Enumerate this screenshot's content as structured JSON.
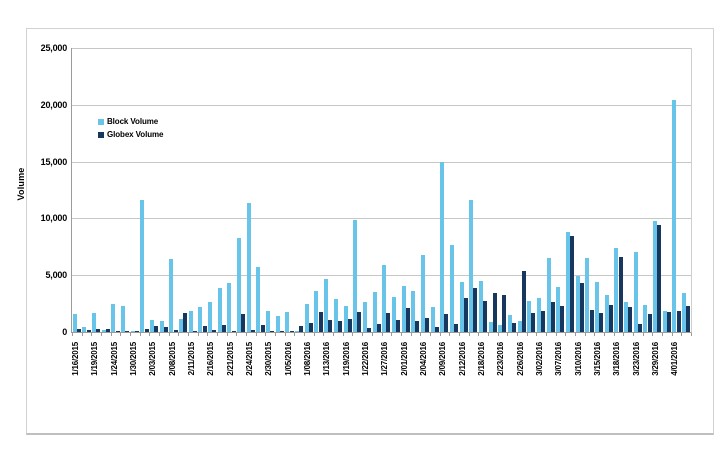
{
  "chart_data": {
    "type": "bar",
    "title": "",
    "xlabel": "",
    "ylabel": "Volume",
    "ylim": [
      0,
      25000
    ],
    "y_tick_values": [
      0,
      5000,
      10000,
      15000,
      20000,
      25000
    ],
    "y_tick_labels": [
      "0",
      "5,000",
      "10,000",
      "15,000",
      "20,000",
      "25,000"
    ],
    "grid": true,
    "legend_position": "inside-top-left",
    "categories": [
      "1/16/2015",
      "",
      "1/19/2015",
      "",
      "1/24/2015",
      "",
      "1/30/2015",
      "",
      "2/03/2015",
      "",
      "2/08/2015",
      "",
      "2/11/2015",
      "",
      "2/16/2015",
      "",
      "2/21/2015",
      "",
      "2/24/2015",
      "",
      "2/30/2015",
      "",
      "1/05/2016",
      "",
      "1/08/2016",
      "",
      "1/13/2016",
      "",
      "1/19/2016",
      "",
      "1/22/2016",
      "",
      "1/27/2016",
      "",
      "2/01/2016",
      "",
      "2/04/2016",
      "",
      "2/09/2016",
      "",
      "2/12/2016",
      "",
      "2/18/2016",
      "",
      "2/23/2016",
      "",
      "2/26/2016",
      "",
      "3/02/2016",
      "",
      "3/07/2016",
      "",
      "3/10/2016",
      "",
      "3/15/2016",
      "",
      "3/18/2016",
      "",
      "3/23/2016",
      "",
      "3/29/2016",
      "",
      "4/01/2016",
      ""
    ],
    "series": [
      {
        "name": "Block Volume",
        "color": "#68C5E9",
        "values": [
          1600,
          400,
          1700,
          150,
          2450,
          2300,
          100,
          11600,
          1100,
          1000,
          6400,
          1150,
          1850,
          2200,
          2600,
          3900,
          4350,
          8300,
          11400,
          5700,
          1850,
          1400,
          1750,
          100,
          2500,
          3600,
          4650,
          2900,
          2300,
          9900,
          2600,
          3500,
          5900,
          3050,
          4050,
          3600,
          6800,
          2200,
          15000,
          7700,
          4400,
          11600,
          4500,
          900,
          600,
          1500,
          1000,
          2700,
          3000,
          6500,
          4000,
          8800,
          4900,
          6500,
          4400,
          3300,
          7400,
          2600,
          7000,
          2400,
          9750,
          1850,
          20400,
          3400
        ]
      },
      {
        "name": "Globex Volume",
        "color": "#17375E",
        "values": [
          250,
          200,
          300,
          250,
          100,
          80,
          100,
          250,
          550,
          400,
          200,
          1700,
          90,
          530,
          150,
          620,
          90,
          1550,
          200,
          620,
          90,
          80,
          60,
          550,
          800,
          1750,
          1050,
          970,
          1120,
          1760,
          380,
          680,
          1650,
          1060,
          2150,
          970,
          1260,
          450,
          1600,
          680,
          3000,
          3900,
          2700,
          3400,
          3250,
          800,
          5400,
          1700,
          1850,
          2600,
          2300,
          8450,
          4300,
          1900,
          1700,
          2400,
          6600,
          2200,
          730,
          1550,
          9400,
          1750,
          1850,
          2300
        ]
      }
    ]
  },
  "legend": {
    "block_label": "Block Volume",
    "globex_label": "Globex Volume"
  },
  "axis": {
    "y_title": "Volume"
  },
  "colors": {
    "block": "#68C5E9",
    "globex": "#17375E",
    "gridline": "#C6C6C6",
    "axis_line": "#9B9B9B",
    "frame_border": "#BFBFBF"
  }
}
